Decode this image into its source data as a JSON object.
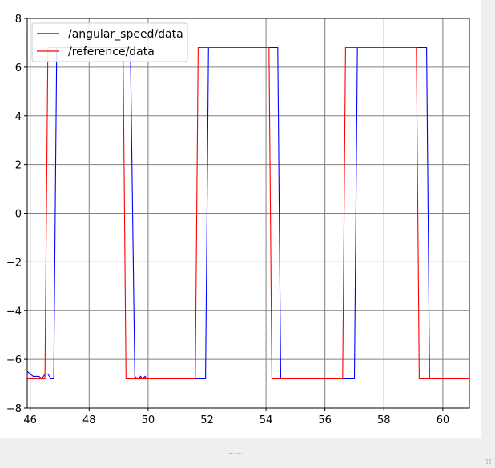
{
  "chart_data": {
    "type": "line",
    "title": "",
    "xlabel": "",
    "ylabel": "",
    "xlim": [
      45.9,
      60.9
    ],
    "ylim": [
      -8,
      8
    ],
    "x_ticks": [
      46,
      48,
      50,
      52,
      54,
      56,
      58,
      60
    ],
    "y_ticks": [
      -8,
      -6,
      -4,
      -2,
      0,
      2,
      4,
      6,
      8
    ],
    "grid": true,
    "legend_position": "upper-left",
    "series": [
      {
        "name": "/angular_speed/data",
        "color": "#0000ff",
        "x": [
          45.9,
          46.1,
          46.2,
          46.3,
          46.4,
          46.5,
          46.6,
          46.7,
          46.8,
          46.9,
          46.95,
          47.05,
          47.2,
          49.4,
          49.55,
          49.65,
          49.75,
          49.8,
          49.9,
          49.95,
          50.0,
          51.95,
          52.05,
          52.15,
          54.4,
          54.5,
          54.6,
          57.0,
          57.1,
          57.2,
          59.45,
          59.55,
          59.65,
          60.9
        ],
        "values": [
          -6.5,
          -6.7,
          -6.7,
          -6.7,
          -6.8,
          -6.6,
          -6.6,
          -6.8,
          -6.8,
          6.8,
          6.8,
          6.8,
          6.8,
          6.8,
          -6.7,
          -6.8,
          -6.7,
          -6.8,
          -6.7,
          -6.8,
          -6.8,
          -6.8,
          6.8,
          6.8,
          6.8,
          -6.8,
          -6.8,
          -6.8,
          6.8,
          6.8,
          6.8,
          -6.8,
          -6.8,
          -6.8
        ]
      },
      {
        "name": "/reference/data",
        "color": "#ff0000",
        "x": [
          45.9,
          46.5,
          46.6,
          47.0,
          49.15,
          49.25,
          49.4,
          51.6,
          51.7,
          51.8,
          54.1,
          54.2,
          54.3,
          56.6,
          56.7,
          56.8,
          59.1,
          59.2,
          59.3,
          60.9
        ],
        "values": [
          -6.8,
          -6.8,
          6.8,
          6.8,
          6.8,
          -6.8,
          -6.8,
          -6.8,
          6.8,
          6.8,
          6.8,
          -6.8,
          -6.8,
          -6.8,
          6.8,
          6.8,
          6.8,
          -6.8,
          -6.8,
          -6.8
        ]
      }
    ]
  }
}
